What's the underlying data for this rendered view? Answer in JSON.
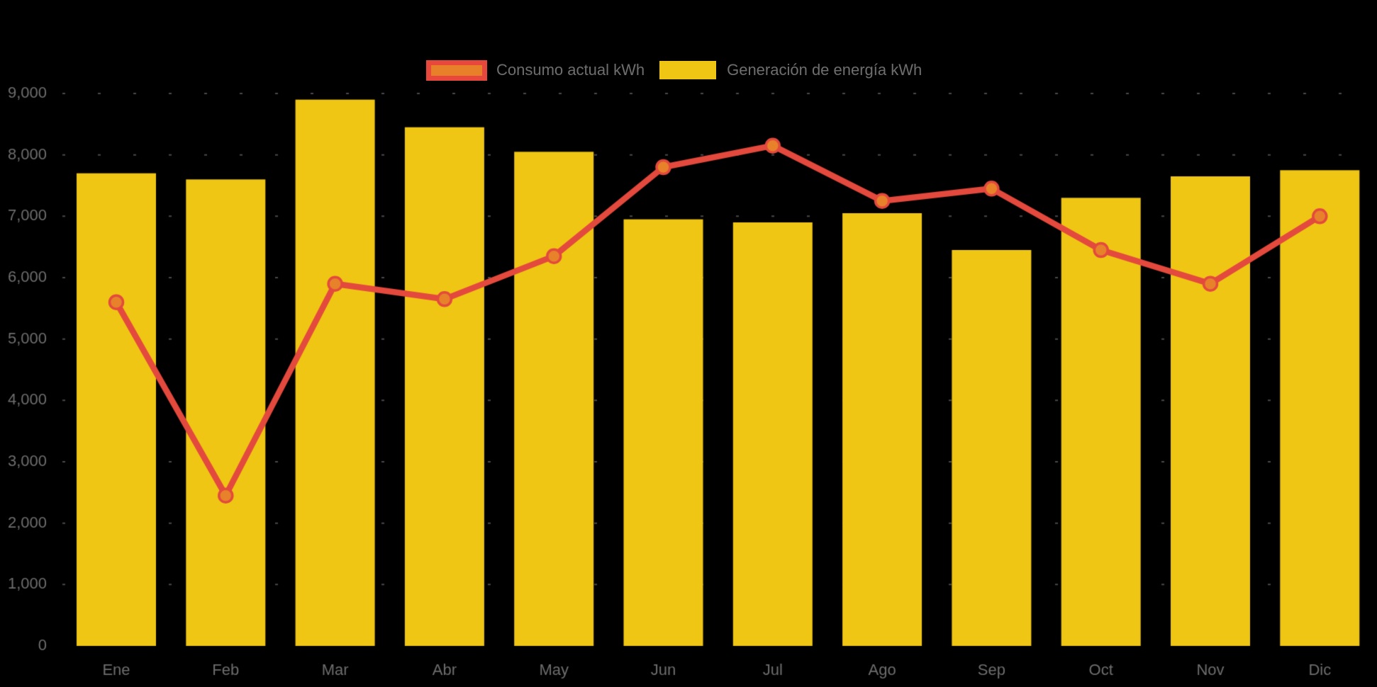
{
  "page": {
    "background": "#000000",
    "text_color": "#6E6E6E"
  },
  "legend": {
    "position": "top-center",
    "items": [
      {
        "label": "Consumo actual kWh",
        "swatch_fill": "#E8802A",
        "swatch_border": "#E8483C"
      },
      {
        "label": "Generación de energía kWh",
        "swatch_fill": "#F0C614",
        "swatch_border": ""
      }
    ]
  },
  "chart_data": {
    "type": "bar",
    "title": "",
    "xlabel": "",
    "ylabel": "",
    "categories": [
      "Ene",
      "Feb",
      "Mar",
      "Abr",
      "May",
      "Jun",
      "Jul",
      "Ago",
      "Sep",
      "Oct",
      "Nov",
      "Dic"
    ],
    "series": [
      {
        "name": "Consumo actual kWh",
        "type": "line",
        "values": [
          5600,
          2450,
          5900,
          5650,
          6350,
          7800,
          8150,
          7250,
          7450,
          6450,
          5900,
          7000
        ],
        "line_color": "#E3493D",
        "marker_fill": "#E8822A",
        "marker_stroke": "#E3493D"
      },
      {
        "name": "Generación de energía kWh",
        "type": "bar",
        "values": [
          7700,
          7600,
          8900,
          8450,
          8050,
          6950,
          6900,
          7050,
          6450,
          7300,
          7650,
          7750
        ],
        "bar_color": "#F0C614"
      }
    ],
    "ylim": [
      0,
      9000
    ],
    "ytick_step": 1000,
    "ytick_labels": [
      "0",
      "1,000",
      "2,000",
      "3,000",
      "4,000",
      "5,000",
      "6,000",
      "7,000",
      "8,000",
      "9,000"
    ],
    "grid": "faint dashed horizontal",
    "legend_position": "top-center",
    "background": "#000000",
    "axis_text_color": "#6E6E6E"
  }
}
